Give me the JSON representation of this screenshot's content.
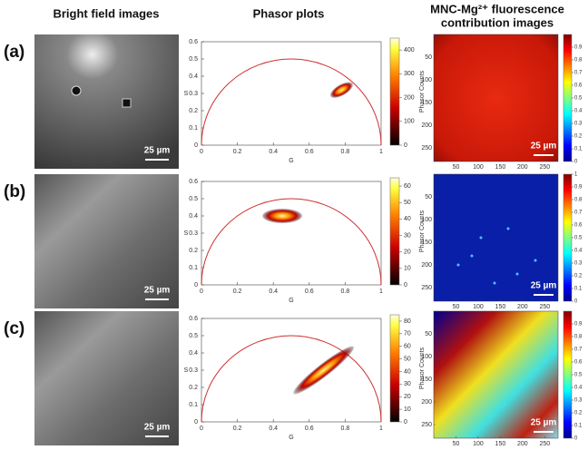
{
  "headers": {
    "bright_field": "Bright field images",
    "phasor": "Phasor plots",
    "fluorescence": [
      "MNC-Mg²⁺ fluorescence",
      "contribution images"
    ]
  },
  "rows": [
    {
      "label": "(a)",
      "bright_scale": "25 µm",
      "fluor_scale": "25 µm",
      "phasor": {
        "xlabel": "G",
        "ylabel": "S",
        "xlim": [
          0,
          1
        ],
        "ylim": [
          0,
          0.6
        ],
        "xticks": [
          0,
          0.2,
          0.4,
          0.6,
          0.8,
          1
        ],
        "yticks": [
          0,
          0.1,
          0.2,
          0.3,
          0.4,
          0.5,
          0.6
        ],
        "cluster": {
          "g": 0.78,
          "s": 0.32
        },
        "colorbar": {
          "label": "Phasor Counts",
          "lim": [
            0,
            450
          ],
          "ticks": [
            0,
            100,
            200,
            300,
            400
          ]
        }
      },
      "fluor_colorbar": {
        "lim": [
          0,
          1
        ],
        "ticks": [
          0,
          0.1,
          0.2,
          0.3,
          0.4,
          0.5,
          0.6,
          0.7,
          0.8,
          0.9
        ]
      },
      "image_ticks": {
        "x": [
          50,
          100,
          150,
          200,
          250
        ],
        "y": [
          50,
          100,
          150,
          200,
          250
        ]
      }
    },
    {
      "label": "(b)",
      "bright_scale": "25 µm",
      "fluor_scale": "25 µm",
      "phasor": {
        "xlabel": "G",
        "ylabel": "S",
        "xlim": [
          0,
          1
        ],
        "ylim": [
          0,
          0.6
        ],
        "xticks": [
          0,
          0.2,
          0.4,
          0.6,
          0.8,
          1
        ],
        "yticks": [
          0,
          0.1,
          0.2,
          0.3,
          0.4,
          0.5,
          0.6
        ],
        "cluster": {
          "g": 0.45,
          "s": 0.4
        },
        "colorbar": {
          "label": "Phasor Counts",
          "lim": [
            0,
            65
          ],
          "ticks": [
            0,
            10,
            20,
            30,
            40,
            50,
            60
          ]
        }
      },
      "fluor_colorbar": {
        "lim": [
          0,
          1
        ],
        "ticks": [
          0,
          0.1,
          0.2,
          0.3,
          0.4,
          0.5,
          0.6,
          0.7,
          0.8,
          0.9,
          1
        ]
      },
      "image_ticks": {
        "x": [
          50,
          100,
          150,
          200,
          250
        ],
        "y": [
          50,
          100,
          150,
          200,
          250
        ]
      }
    },
    {
      "label": "(c)",
      "bright_scale": "25 µm",
      "fluor_scale": "25 µm",
      "phasor": {
        "xlabel": "G",
        "ylabel": "S",
        "xlim": [
          0,
          1
        ],
        "ylim": [
          0,
          0.6
        ],
        "xticks": [
          0,
          0.2,
          0.4,
          0.6,
          0.8,
          1
        ],
        "yticks": [
          0,
          0.1,
          0.2,
          0.3,
          0.4,
          0.5,
          0.6
        ],
        "cluster": {
          "g": 0.68,
          "s": 0.3
        },
        "colorbar": {
          "label": "Phasor Counts",
          "lim": [
            0,
            85
          ],
          "ticks": [
            0,
            10,
            20,
            30,
            40,
            50,
            60,
            70,
            80
          ]
        }
      },
      "fluor_colorbar": {
        "lim": [
          0,
          1
        ],
        "ticks": [
          0,
          0.1,
          0.2,
          0.3,
          0.4,
          0.5,
          0.6,
          0.7,
          0.8,
          0.9
        ]
      },
      "image_ticks": {
        "x": [
          50,
          100,
          150,
          200,
          250
        ],
        "y": [
          50,
          100,
          150,
          200,
          250
        ]
      }
    }
  ]
}
